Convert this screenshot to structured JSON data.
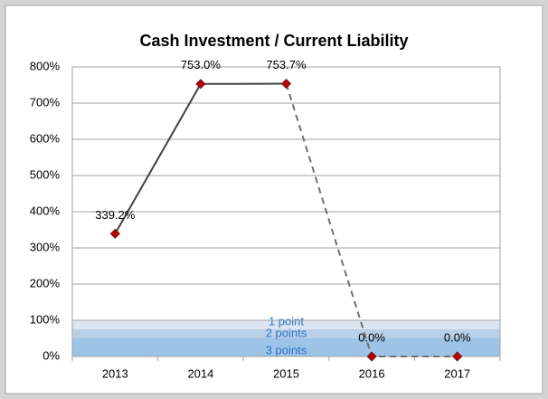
{
  "chart_data": {
    "type": "line",
    "title": "Cash Investment / Current Liability",
    "categories": [
      "2013",
      "2014",
      "2015",
      "2016",
      "2017"
    ],
    "values": [
      339.2,
      753.0,
      753.7,
      0.0,
      0.0
    ],
    "value_labels": [
      "339.2%",
      "753.0%",
      "753.7%",
      "0.0%",
      "0.0%"
    ],
    "color": "#404040",
    "marker_color": "#c00000",
    "segment_styles": [
      "solid",
      "solid",
      "dashed",
      "dashed"
    ],
    "ylim": [
      0,
      800
    ],
    "yticks": [
      {
        "value": 0,
        "label": "0%"
      },
      {
        "value": 100,
        "label": "100%"
      },
      {
        "value": 200,
        "label": "200%"
      },
      {
        "value": 300,
        "label": "300%"
      },
      {
        "value": 400,
        "label": "400%"
      },
      {
        "value": 500,
        "label": "500%"
      },
      {
        "value": 600,
        "label": "600%"
      },
      {
        "value": 700,
        "label": "700%"
      },
      {
        "value": 800,
        "label": "800%"
      }
    ],
    "grid": true,
    "bands": [
      {
        "label": "1 point",
        "from": 75,
        "to": 100,
        "color": "#dce6f2"
      },
      {
        "label": "2 points",
        "from": 50,
        "to": 75,
        "color": "#b9cfe8"
      },
      {
        "label": "3 points",
        "from": 0,
        "to": 50,
        "color": "#9dc3e6"
      }
    ]
  }
}
